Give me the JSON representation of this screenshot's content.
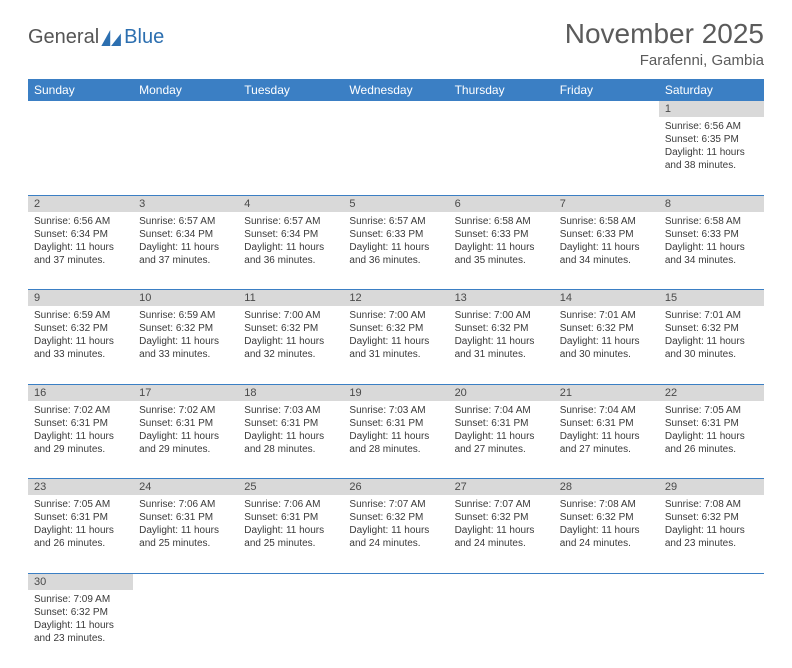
{
  "logo": {
    "text1": "General",
    "text2": "Blue"
  },
  "title": "November 2025",
  "location": "Farafenni, Gambia",
  "weekdays": [
    "Sunday",
    "Monday",
    "Tuesday",
    "Wednesday",
    "Thursday",
    "Friday",
    "Saturday"
  ],
  "colors": {
    "header_bg": "#3b7fc4",
    "header_text": "#ffffff",
    "daynum_bg": "#d9d9d9",
    "cell_border": "#3b7fc4",
    "text": "#3a3a3a",
    "title_text": "#5b5b5b"
  },
  "weeks": [
    [
      null,
      null,
      null,
      null,
      null,
      null,
      {
        "n": "1",
        "sr": "6:56 AM",
        "ss": "6:35 PM",
        "dl": "11 hours and 38 minutes."
      }
    ],
    [
      {
        "n": "2",
        "sr": "6:56 AM",
        "ss": "6:34 PM",
        "dl": "11 hours and 37 minutes."
      },
      {
        "n": "3",
        "sr": "6:57 AM",
        "ss": "6:34 PM",
        "dl": "11 hours and 37 minutes."
      },
      {
        "n": "4",
        "sr": "6:57 AM",
        "ss": "6:34 PM",
        "dl": "11 hours and 36 minutes."
      },
      {
        "n": "5",
        "sr": "6:57 AM",
        "ss": "6:33 PM",
        "dl": "11 hours and 36 minutes."
      },
      {
        "n": "6",
        "sr": "6:58 AM",
        "ss": "6:33 PM",
        "dl": "11 hours and 35 minutes."
      },
      {
        "n": "7",
        "sr": "6:58 AM",
        "ss": "6:33 PM",
        "dl": "11 hours and 34 minutes."
      },
      {
        "n": "8",
        "sr": "6:58 AM",
        "ss": "6:33 PM",
        "dl": "11 hours and 34 minutes."
      }
    ],
    [
      {
        "n": "9",
        "sr": "6:59 AM",
        "ss": "6:32 PM",
        "dl": "11 hours and 33 minutes."
      },
      {
        "n": "10",
        "sr": "6:59 AM",
        "ss": "6:32 PM",
        "dl": "11 hours and 33 minutes."
      },
      {
        "n": "11",
        "sr": "7:00 AM",
        "ss": "6:32 PM",
        "dl": "11 hours and 32 minutes."
      },
      {
        "n": "12",
        "sr": "7:00 AM",
        "ss": "6:32 PM",
        "dl": "11 hours and 31 minutes."
      },
      {
        "n": "13",
        "sr": "7:00 AM",
        "ss": "6:32 PM",
        "dl": "11 hours and 31 minutes."
      },
      {
        "n": "14",
        "sr": "7:01 AM",
        "ss": "6:32 PM",
        "dl": "11 hours and 30 minutes."
      },
      {
        "n": "15",
        "sr": "7:01 AM",
        "ss": "6:32 PM",
        "dl": "11 hours and 30 minutes."
      }
    ],
    [
      {
        "n": "16",
        "sr": "7:02 AM",
        "ss": "6:31 PM",
        "dl": "11 hours and 29 minutes."
      },
      {
        "n": "17",
        "sr": "7:02 AM",
        "ss": "6:31 PM",
        "dl": "11 hours and 29 minutes."
      },
      {
        "n": "18",
        "sr": "7:03 AM",
        "ss": "6:31 PM",
        "dl": "11 hours and 28 minutes."
      },
      {
        "n": "19",
        "sr": "7:03 AM",
        "ss": "6:31 PM",
        "dl": "11 hours and 28 minutes."
      },
      {
        "n": "20",
        "sr": "7:04 AM",
        "ss": "6:31 PM",
        "dl": "11 hours and 27 minutes."
      },
      {
        "n": "21",
        "sr": "7:04 AM",
        "ss": "6:31 PM",
        "dl": "11 hours and 27 minutes."
      },
      {
        "n": "22",
        "sr": "7:05 AM",
        "ss": "6:31 PM",
        "dl": "11 hours and 26 minutes."
      }
    ],
    [
      {
        "n": "23",
        "sr": "7:05 AM",
        "ss": "6:31 PM",
        "dl": "11 hours and 26 minutes."
      },
      {
        "n": "24",
        "sr": "7:06 AM",
        "ss": "6:31 PM",
        "dl": "11 hours and 25 minutes."
      },
      {
        "n": "25",
        "sr": "7:06 AM",
        "ss": "6:31 PM",
        "dl": "11 hours and 25 minutes."
      },
      {
        "n": "26",
        "sr": "7:07 AM",
        "ss": "6:32 PM",
        "dl": "11 hours and 24 minutes."
      },
      {
        "n": "27",
        "sr": "7:07 AM",
        "ss": "6:32 PM",
        "dl": "11 hours and 24 minutes."
      },
      {
        "n": "28",
        "sr": "7:08 AM",
        "ss": "6:32 PM",
        "dl": "11 hours and 24 minutes."
      },
      {
        "n": "29",
        "sr": "7:08 AM",
        "ss": "6:32 PM",
        "dl": "11 hours and 23 minutes."
      }
    ],
    [
      {
        "n": "30",
        "sr": "7:09 AM",
        "ss": "6:32 PM",
        "dl": "11 hours and 23 minutes."
      },
      null,
      null,
      null,
      null,
      null,
      null
    ]
  ],
  "labels": {
    "sunrise": "Sunrise:",
    "sunset": "Sunset:",
    "daylight": "Daylight:"
  }
}
